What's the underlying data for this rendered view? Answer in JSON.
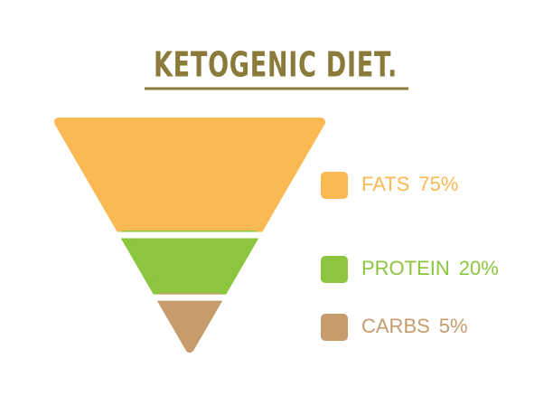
{
  "chart_data": {
    "type": "funnel",
    "title": "KETOGENIC DIET.",
    "categories": [
      "FATS",
      "PROTEIN",
      "CARBS"
    ],
    "values": [
      75,
      20,
      5
    ],
    "value_labels": [
      "75%",
      "20%",
      "5%"
    ],
    "colors": [
      "#fbb954",
      "#8cc63f",
      "#c69c6d"
    ]
  }
}
